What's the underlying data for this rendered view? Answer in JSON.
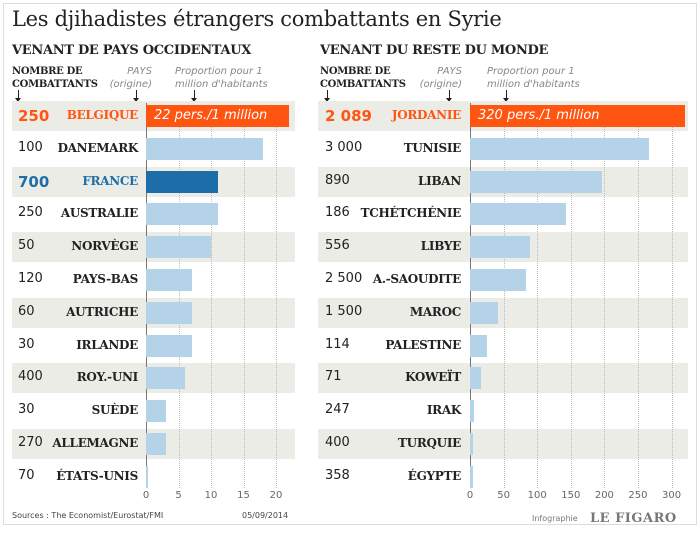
{
  "title": "Les djihadistes étrangers combattants en Syrie",
  "headers": {
    "num": "NOMBRE DE COMBATTANTS",
    "pays": "PAYS (origine)",
    "prop": "Proportion pour 1 million d'habitants"
  },
  "colors": {
    "highlight": "#ff5511",
    "bar": "#b5d3e8",
    "france": "#1d6ea8",
    "row_shade": "#ecece6"
  },
  "sources": "Sources : The Economist/Eurostat/FMI",
  "date": "05/09/2014",
  "credit": "Infographie",
  "logo": "LE FIGARO",
  "chart_data": [
    {
      "type": "bar",
      "orientation": "horizontal",
      "title": "VENANT DE PAYS OCCIDENTAUX",
      "xlim": [
        0,
        22
      ],
      "xticks": [
        "0",
        "5",
        "10",
        "15",
        "20"
      ],
      "grid": true,
      "highlight_label": "22 pers./1 million",
      "categories": [
        "BELGIQUE",
        "DANEMARK",
        "FRANCE",
        "AUSTRALIE",
        "NORVÈGE",
        "PAYS-BAS",
        "AUTRICHE",
        "IRLANDE",
        "ROY.-UNI",
        "SUÈDE",
        "ALLEMAGNE",
        "ÉTATS-UNIS"
      ],
      "fighters": [
        "250",
        "100",
        "700",
        "250",
        "50",
        "120",
        "60",
        "30",
        "400",
        "30",
        "270",
        "70"
      ],
      "values": [
        22,
        18,
        11,
        11,
        10,
        7,
        7,
        7,
        6,
        3,
        3,
        0.2
      ],
      "styles": [
        "highlight",
        "bar",
        "france",
        "bar",
        "bar",
        "bar",
        "bar",
        "bar",
        "bar",
        "bar",
        "bar",
        "bar"
      ]
    },
    {
      "type": "bar",
      "orientation": "horizontal",
      "title": "VENANT DU RESTE DU MONDE",
      "xlim": [
        0,
        320
      ],
      "xticks": [
        "0",
        "50",
        "100",
        "150",
        "200",
        "250",
        "300"
      ],
      "grid": true,
      "highlight_label": "320 pers./1 million",
      "categories": [
        "JORDANIE",
        "TUNISIE",
        "LIBAN",
        "TCHÉTCHÉNIE",
        "LIBYE",
        "A.-SAOUDITE",
        "MAROC",
        "PALESTINE",
        "KOWEÏT",
        "IRAK",
        "TURQUIE",
        "ÉGYPTE"
      ],
      "fighters": [
        "2 089",
        "3 000",
        "890",
        "186",
        "556",
        "2 500",
        "1 500",
        "114",
        "71",
        "247",
        "400",
        "358"
      ],
      "values": [
        320,
        266,
        197,
        143,
        90,
        83,
        42,
        25,
        17,
        6,
        5,
        4
      ],
      "styles": [
        "highlight",
        "bar",
        "bar",
        "bar",
        "bar",
        "bar",
        "bar",
        "bar",
        "bar",
        "bar",
        "bar",
        "bar"
      ]
    }
  ]
}
